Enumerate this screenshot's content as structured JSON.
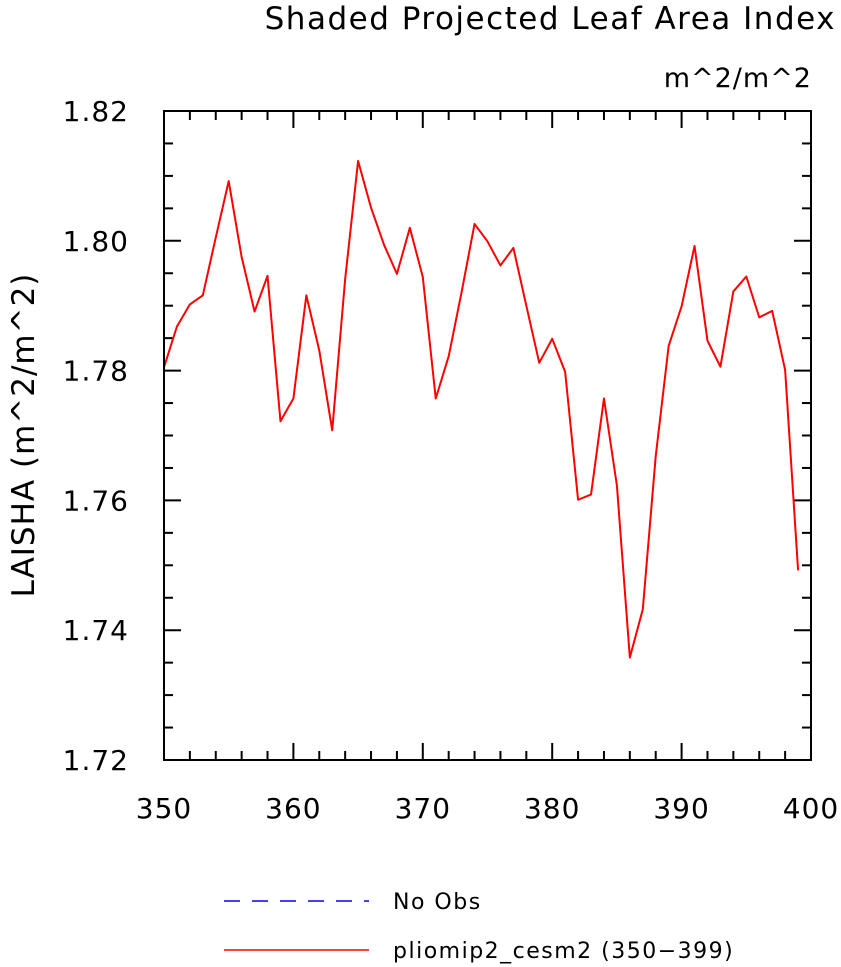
{
  "chart_data": {
    "type": "line",
    "title": "Shaded Projected Leaf Area Index",
    "units_label": "m^2/m^2",
    "ylabel": "LAISHA  (m^2/m^2)",
    "xlabel": "",
    "xlim": [
      350,
      400
    ],
    "ylim": [
      1.72,
      1.82
    ],
    "xticks": [
      350,
      360,
      370,
      380,
      390,
      400
    ],
    "xtick_labels": [
      "350",
      "360",
      "370",
      "380",
      "390",
      "400"
    ],
    "yticks": [
      1.72,
      1.74,
      1.76,
      1.78,
      1.8,
      1.82
    ],
    "ytick_labels": [
      "1.72",
      "1.74",
      "1.76",
      "1.78",
      "1.80",
      "1.82"
    ],
    "x_minor_step": 2,
    "y_minor_step": 0.005,
    "grid": false,
    "legend_position": "bottom",
    "series": [
      {
        "name": "pliomip2_cesm2 (350−399)",
        "color": "#ff0000",
        "dash": "solid",
        "x": [
          350,
          351,
          352,
          353,
          354,
          355,
          356,
          357,
          358,
          359,
          360,
          361,
          362,
          363,
          364,
          365,
          366,
          367,
          368,
          369,
          370,
          371,
          372,
          373,
          374,
          375,
          376,
          377,
          378,
          379,
          380,
          381,
          382,
          383,
          384,
          385,
          386,
          387,
          388,
          389,
          390,
          391,
          392,
          393,
          394,
          395,
          396,
          397,
          398,
          399
        ],
        "values": [
          1.7805,
          1.7868,
          1.7902,
          1.7916,
          1.8005,
          1.8092,
          1.7975,
          1.7891,
          1.7946,
          1.7722,
          1.7757,
          1.7916,
          1.7831,
          1.7708,
          1.7941,
          1.8123,
          1.8051,
          1.7994,
          1.7949,
          1.802,
          1.7944,
          1.7757,
          1.7822,
          1.7921,
          1.8026,
          1.7999,
          1.7962,
          1.7989,
          1.79,
          1.7812,
          1.7849,
          1.7798,
          1.7601,
          1.7609,
          1.7757,
          1.7623,
          1.7358,
          1.7432,
          1.7668,
          1.7838,
          1.7899,
          1.7992,
          1.7846,
          1.7806,
          1.7922,
          1.7945,
          1.7882,
          1.7892,
          1.7801,
          1.7493
        ]
      }
    ],
    "legend": [
      {
        "label": "No Obs",
        "color": "#0000ff",
        "dash": "dashed"
      },
      {
        "label": "pliomip2_cesm2 (350−399)",
        "color": "#ff0000",
        "dash": "solid"
      }
    ]
  }
}
